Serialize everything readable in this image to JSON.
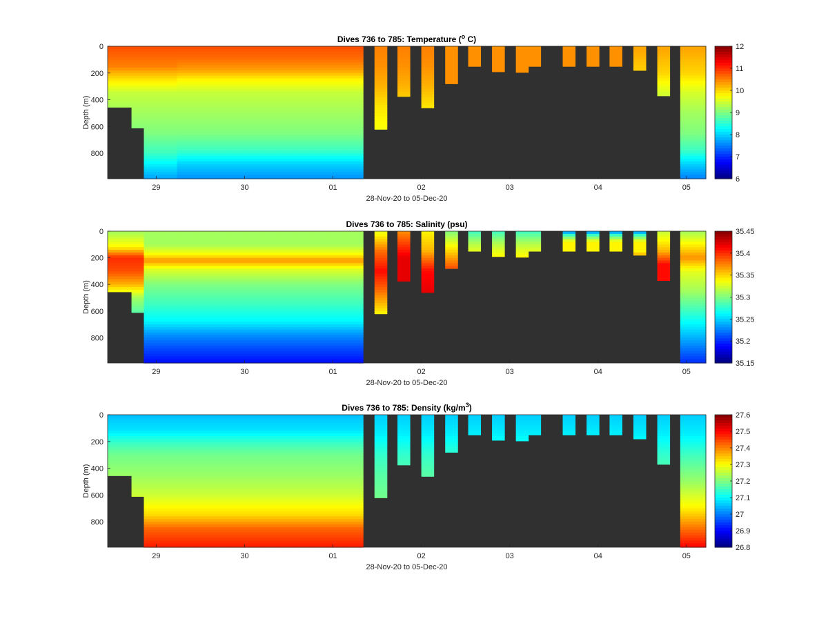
{
  "chart_data": [
    {
      "type": "heatmap",
      "title": "Dives 736 to 785: Temperature (° C)",
      "title_parts": [
        "Dives 736 to 785: Temperature (",
        "o",
        " C)"
      ],
      "xlabel": "28-Nov-20 to 05-Dec-20",
      "ylabel": "Depth (m)",
      "x_ticks": [
        "29",
        "30",
        "01",
        "02",
        "03",
        "04",
        "05"
      ],
      "y_ticks": [
        "0",
        "200",
        "400",
        "600",
        "800"
      ],
      "ylim": [
        0,
        990
      ],
      "colorbar_ticks": [
        "12",
        "11",
        "10",
        "9",
        "8",
        "7",
        "6"
      ],
      "clim": [
        6,
        12
      ],
      "colormap": "jet",
      "background_color": "#303030",
      "sections": [
        {
          "x_range": [
            28.55,
            29.25
          ],
          "profile": [
            [
              0,
              10.8
            ],
            [
              150,
              10.5
            ],
            [
              250,
              9.9
            ],
            [
              350,
              9.4
            ],
            [
              500,
              9.2
            ],
            [
              650,
              9.0
            ],
            [
              800,
              8.6
            ],
            [
              900,
              8.1
            ],
            [
              990,
              7.7
            ]
          ]
        },
        {
          "x_range": [
            29.25,
            31.35
          ],
          "profile": [
            [
              0,
              10.8
            ],
            [
              100,
              10.6
            ],
            [
              180,
              10.3
            ],
            [
              250,
              9.8
            ],
            [
              350,
              9.4
            ],
            [
              500,
              9.2
            ],
            [
              650,
              9.0
            ],
            [
              780,
              8.6
            ],
            [
              880,
              8.0
            ],
            [
              990,
              7.6
            ]
          ]
        },
        {
          "x_range": [
            31.35,
            32.3
          ],
          "profile": [
            [
              0,
              10.5
            ],
            [
              150,
              10.4
            ],
            [
              300,
              10.2
            ],
            [
              450,
              9.9
            ],
            [
              620,
              9.7
            ]
          ]
        },
        {
          "x_range": [
            32.3,
            33.3
          ],
          "profile": [
            [
              0,
              10.4
            ],
            [
              200,
              10.4
            ]
          ]
        },
        {
          "x_range": [
            33.6,
            34.3
          ],
          "profile": [
            [
              0,
              10.4
            ],
            [
              180,
              10.4
            ]
          ]
        },
        {
          "x_range": [
            34.3,
            35.3
          ],
          "profile": [
            [
              0,
              10.3
            ],
            [
              200,
              10.0
            ],
            [
              350,
              9.5
            ],
            [
              500,
              9.2
            ],
            [
              650,
              9.0
            ],
            [
              780,
              8.6
            ],
            [
              880,
              8.0
            ],
            [
              990,
              7.5
            ]
          ]
        }
      ],
      "dives": [
        {
          "x": [
            28.45,
            28.72
          ],
          "max_depth": 455
        },
        {
          "x": [
            28.72,
            28.86
          ],
          "max_depth": 610
        },
        {
          "x": [
            28.86,
            31.34
          ],
          "max_depth": 990
        },
        {
          "x": [
            31.47,
            31.61
          ],
          "max_depth": 620
        },
        {
          "x": [
            31.73,
            31.87
          ],
          "max_depth": 375
        },
        {
          "x": [
            32.0,
            32.14
          ],
          "max_depth": 460
        },
        {
          "x": [
            32.27,
            32.41
          ],
          "max_depth": 280
        },
        {
          "x": [
            32.53,
            32.67
          ],
          "max_depth": 150
        },
        {
          "x": [
            32.8,
            32.94
          ],
          "max_depth": 190
        },
        {
          "x": [
            33.07,
            33.21
          ],
          "max_depth": 195
        },
        {
          "x": [
            33.21,
            33.35
          ],
          "max_depth": 150
        },
        {
          "x": [
            33.6,
            33.74
          ],
          "max_depth": 150
        },
        {
          "x": [
            33.87,
            34.01
          ],
          "max_depth": 150
        },
        {
          "x": [
            34.13,
            34.27
          ],
          "max_depth": 150
        },
        {
          "x": [
            34.4,
            34.54
          ],
          "max_depth": 180
        },
        {
          "x": [
            34.67,
            34.81
          ],
          "max_depth": 370
        },
        {
          "x": [
            34.93,
            35.22
          ],
          "max_depth": 990
        }
      ]
    },
    {
      "type": "heatmap",
      "title": "Dives 736 to 785: Salinity (psu)",
      "title_parts": [
        "Dives 736 to 785: Salinity (psu)",
        "",
        ""
      ],
      "xlabel": "28-Nov-20 to 05-Dec-20",
      "ylabel": "Depth (m)",
      "x_ticks": [
        "29",
        "30",
        "01",
        "02",
        "03",
        "04",
        "05"
      ],
      "y_ticks": [
        "0",
        "200",
        "400",
        "600",
        "800"
      ],
      "ylim": [
        0,
        990
      ],
      "colorbar_ticks": [
        "35.45",
        "35.4",
        "35.35",
        "35.3",
        "35.25",
        "35.2",
        "35.15"
      ],
      "clim": [
        35.15,
        35.45
      ],
      "colormap": "jet",
      "background_color": "#303030",
      "sections": [
        {
          "x_range": [
            28.55,
            28.95
          ],
          "profile": [
            [
              0,
              35.31
            ],
            [
              120,
              35.34
            ],
            [
              200,
              35.4
            ],
            [
              300,
              35.39
            ],
            [
              400,
              35.36
            ],
            [
              500,
              35.31
            ],
            [
              650,
              35.28
            ],
            [
              800,
              35.24
            ],
            [
              900,
              35.21
            ],
            [
              990,
              35.19
            ]
          ]
        },
        {
          "x_range": [
            28.95,
            31.35
          ],
          "profile": [
            [
              0,
              35.31
            ],
            [
              100,
              35.31
            ],
            [
              180,
              35.34
            ],
            [
              220,
              35.37
            ],
            [
              280,
              35.33
            ],
            [
              400,
              35.3
            ],
            [
              550,
              35.28
            ],
            [
              680,
              35.26
            ],
            [
              780,
              35.23
            ],
            [
              880,
              35.21
            ],
            [
              990,
              35.19
            ]
          ]
        },
        {
          "x_range": [
            31.45,
            31.65
          ],
          "profile": [
            [
              0,
              35.33
            ],
            [
              150,
              35.38
            ],
            [
              300,
              35.41
            ],
            [
              450,
              35.38
            ],
            [
              620,
              35.34
            ]
          ]
        },
        {
          "x_range": [
            31.7,
            31.9
          ],
          "profile": [
            [
              0,
              35.37
            ],
            [
              200,
              35.42
            ],
            [
              375,
              35.42
            ]
          ]
        },
        {
          "x_range": [
            31.95,
            32.2
          ],
          "profile": [
            [
              0,
              35.34
            ],
            [
              150,
              35.36
            ],
            [
              300,
              35.41
            ],
            [
              460,
              35.42
            ]
          ]
        },
        {
          "x_range": [
            32.2,
            32.45
          ],
          "profile": [
            [
              0,
              35.3
            ],
            [
              150,
              35.35
            ],
            [
              280,
              35.39
            ]
          ]
        },
        {
          "x_range": [
            32.45,
            33.4
          ],
          "profile": [
            [
              0,
              35.28
            ],
            [
              80,
              35.31
            ],
            [
              150,
              35.33
            ],
            [
              200,
              35.34
            ]
          ]
        },
        {
          "x_range": [
            33.55,
            34.6
          ],
          "profile": [
            [
              0,
              35.22
            ],
            [
              30,
              35.28
            ],
            [
              80,
              35.34
            ],
            [
              150,
              35.34
            ],
            [
              180,
              35.36
            ]
          ]
        },
        {
          "x_range": [
            34.6,
            34.85
          ],
          "profile": [
            [
              0,
              35.32
            ],
            [
              150,
              35.36
            ],
            [
              250,
              35.41
            ],
            [
              370,
              35.41
            ]
          ]
        },
        {
          "x_range": [
            34.9,
            35.3
          ],
          "profile": [
            [
              0,
              35.31
            ],
            [
              200,
              35.37
            ],
            [
              300,
              35.33
            ],
            [
              450,
              35.31
            ],
            [
              600,
              35.28
            ],
            [
              800,
              35.24
            ],
            [
              990,
              35.2
            ]
          ]
        }
      ],
      "dives": [
        {
          "x": [
            28.45,
            28.72
          ],
          "max_depth": 455
        },
        {
          "x": [
            28.72,
            28.86
          ],
          "max_depth": 610
        },
        {
          "x": [
            28.86,
            31.34
          ],
          "max_depth": 990
        },
        {
          "x": [
            31.47,
            31.61
          ],
          "max_depth": 620
        },
        {
          "x": [
            31.73,
            31.87
          ],
          "max_depth": 375
        },
        {
          "x": [
            32.0,
            32.14
          ],
          "max_depth": 460
        },
        {
          "x": [
            32.27,
            32.41
          ],
          "max_depth": 280
        },
        {
          "x": [
            32.53,
            32.67
          ],
          "max_depth": 150
        },
        {
          "x": [
            32.8,
            32.94
          ],
          "max_depth": 190
        },
        {
          "x": [
            33.07,
            33.21
          ],
          "max_depth": 195
        },
        {
          "x": [
            33.21,
            33.35
          ],
          "max_depth": 150
        },
        {
          "x": [
            33.6,
            33.74
          ],
          "max_depth": 150
        },
        {
          "x": [
            33.87,
            34.01
          ],
          "max_depth": 150
        },
        {
          "x": [
            34.13,
            34.27
          ],
          "max_depth": 150
        },
        {
          "x": [
            34.4,
            34.54
          ],
          "max_depth": 180
        },
        {
          "x": [
            34.67,
            34.81
          ],
          "max_depth": 370
        },
        {
          "x": [
            34.93,
            35.22
          ],
          "max_depth": 990
        }
      ]
    },
    {
      "type": "heatmap",
      "title": "Dives 736 to 785: Density (kg/m3)",
      "title_parts": [
        "Dives 736 to 785: Density (kg/m",
        "3",
        ")"
      ],
      "xlabel": "28-Nov-20 to 05-Dec-20",
      "ylabel": "Depth (m)",
      "x_ticks": [
        "29",
        "30",
        "01",
        "02",
        "03",
        "04",
        "05"
      ],
      "y_ticks": [
        "0",
        "200",
        "400",
        "600",
        "800"
      ],
      "ylim": [
        0,
        990
      ],
      "colorbar_ticks": [
        "27.6",
        "27.5",
        "27.4",
        "27.3",
        "27.2",
        "27.1",
        "27",
        "26.9",
        "26.8"
      ],
      "clim": [
        26.8,
        27.6
      ],
      "colormap": "jet",
      "background_color": "#303030",
      "sections": [
        {
          "x_range": [
            28.45,
            31.35
          ],
          "profile": [
            [
              0,
              27.05
            ],
            [
              120,
              27.08
            ],
            [
              200,
              27.14
            ],
            [
              300,
              27.19
            ],
            [
              450,
              27.22
            ],
            [
              600,
              27.26
            ],
            [
              750,
              27.33
            ],
            [
              850,
              27.42
            ],
            [
              990,
              27.48
            ]
          ]
        },
        {
          "x_range": [
            31.4,
            34.85
          ],
          "profile": [
            [
              0,
              27.06
            ],
            [
              150,
              27.09
            ],
            [
              300,
              27.14
            ],
            [
              450,
              27.17
            ],
            [
              620,
              27.19
            ]
          ]
        },
        {
          "x_range": [
            34.9,
            35.3
          ],
          "profile": [
            [
              0,
              27.06
            ],
            [
              150,
              27.09
            ],
            [
              300,
              27.15
            ],
            [
              500,
              27.22
            ],
            [
              700,
              27.31
            ],
            [
              850,
              27.41
            ],
            [
              990,
              27.5
            ]
          ]
        }
      ],
      "dives": [
        {
          "x": [
            28.45,
            28.72
          ],
          "max_depth": 455
        },
        {
          "x": [
            28.72,
            28.86
          ],
          "max_depth": 610
        },
        {
          "x": [
            28.86,
            31.34
          ],
          "max_depth": 990
        },
        {
          "x": [
            31.47,
            31.61
          ],
          "max_depth": 620
        },
        {
          "x": [
            31.73,
            31.87
          ],
          "max_depth": 375
        },
        {
          "x": [
            32.0,
            32.14
          ],
          "max_depth": 460
        },
        {
          "x": [
            32.27,
            32.41
          ],
          "max_depth": 280
        },
        {
          "x": [
            32.53,
            32.67
          ],
          "max_depth": 150
        },
        {
          "x": [
            32.8,
            32.94
          ],
          "max_depth": 190
        },
        {
          "x": [
            33.07,
            33.21
          ],
          "max_depth": 195
        },
        {
          "x": [
            33.21,
            33.35
          ],
          "max_depth": 150
        },
        {
          "x": [
            33.6,
            33.74
          ],
          "max_depth": 150
        },
        {
          "x": [
            33.87,
            34.01
          ],
          "max_depth": 150
        },
        {
          "x": [
            34.13,
            34.27
          ],
          "max_depth": 150
        },
        {
          "x": [
            34.4,
            34.54
          ],
          "max_depth": 180
        },
        {
          "x": [
            34.67,
            34.81
          ],
          "max_depth": 370
        },
        {
          "x": [
            34.93,
            35.22
          ],
          "max_depth": 990
        }
      ]
    }
  ]
}
